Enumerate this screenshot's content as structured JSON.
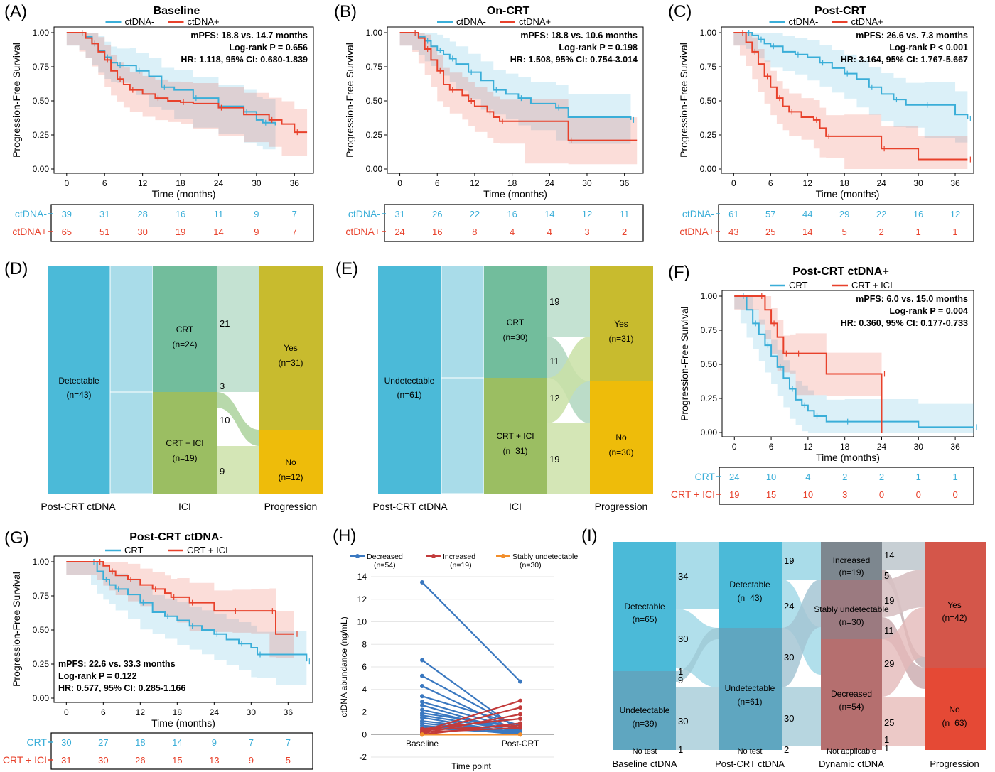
{
  "colors": {
    "neg": "#3aaed8",
    "pos": "#e8412b",
    "blue_line": "#3a78c0",
    "red_line": "#c23b3b",
    "orange_line": "#f28e2b"
  },
  "chart_data": [
    {
      "id": "A",
      "type": "line",
      "letter": "(A)",
      "title": "Baseline",
      "legend": [
        "ctDNA-",
        "ctDNA+"
      ],
      "xlabel": "Time (months)",
      "ylabel": "Progression-Free Survival",
      "xlim": [
        -2,
        39
      ],
      "ylim": [
        0,
        1
      ],
      "xticks": [
        "0",
        "6",
        "12",
        "18",
        "24",
        "30",
        "36"
      ],
      "yticks": [
        "0.00",
        "0.25",
        "0.50",
        "0.75",
        "1.00"
      ],
      "annotation": [
        "mPFS: 18.8 vs. 14.7 months",
        "Log-rank P = 0.656",
        "HR: 1.118, 95% CI: 0.680-1.839"
      ],
      "series": [
        {
          "name": "ctDNA-",
          "x": [
            0,
            2,
            3,
            4,
            5,
            6,
            7,
            8,
            10,
            11,
            13,
            15,
            17,
            20,
            24,
            28,
            30,
            31,
            33
          ],
          "y": [
            1,
            1,
            0.97,
            0.92,
            0.87,
            0.82,
            0.78,
            0.76,
            0.76,
            0.72,
            0.68,
            0.6,
            0.58,
            0.52,
            0.46,
            0.42,
            0.36,
            0.34,
            0.32
          ]
        },
        {
          "name": "ctDNA+",
          "x": [
            0,
            2,
            3,
            4,
            5,
            6,
            7,
            8,
            9,
            10,
            12,
            14,
            16,
            18,
            20,
            24,
            28,
            32,
            34,
            36,
            38
          ],
          "y": [
            1,
            1,
            0.96,
            0.92,
            0.86,
            0.8,
            0.72,
            0.66,
            0.62,
            0.58,
            0.55,
            0.52,
            0.5,
            0.49,
            0.48,
            0.45,
            0.4,
            0.36,
            0.33,
            0.27,
            0.27
          ]
        }
      ],
      "risk_table": {
        "labels": [
          "ctDNA-",
          "ctDNA+"
        ],
        "rows": [
          [
            "39",
            "31",
            "28",
            "16",
            "11",
            "9",
            "7"
          ],
          [
            "65",
            "51",
            "30",
            "19",
            "14",
            "9",
            "7"
          ]
        ]
      }
    },
    {
      "id": "B",
      "type": "line",
      "letter": "(B)",
      "title": "On-CRT",
      "legend": [
        "ctDNA-",
        "ctDNA+"
      ],
      "xlabel": "Time (months)",
      "ylabel": "Progression-Free Survival",
      "xlim": [
        -2,
        39
      ],
      "ylim": [
        0,
        1
      ],
      "xticks": [
        "0",
        "6",
        "12",
        "18",
        "24",
        "30",
        "36"
      ],
      "yticks": [
        "0.00",
        "0.25",
        "0.50",
        "0.75",
        "1.00"
      ],
      "annotation": [
        "mPFS: 18.8 vs. 10.6 months",
        "Log-rank P = 0.198",
        "HR: 1.508, 95% CI: 0.754-3.014"
      ],
      "series": [
        {
          "name": "ctDNA-",
          "x": [
            0,
            2,
            3,
            4,
            5,
            6,
            7,
            8,
            9,
            11,
            13,
            15,
            17,
            19,
            21,
            25,
            27,
            37
          ],
          "y": [
            1,
            1,
            0.97,
            0.94,
            0.9,
            0.87,
            0.84,
            0.81,
            0.77,
            0.71,
            0.65,
            0.58,
            0.55,
            0.52,
            0.48,
            0.45,
            0.38,
            0.36
          ]
        },
        {
          "name": "ctDNA+",
          "x": [
            0,
            2,
            3,
            4,
            5,
            6,
            7,
            8,
            10,
            11,
            12,
            14,
            15,
            16,
            20,
            27,
            38
          ],
          "y": [
            1,
            1,
            0.96,
            0.88,
            0.8,
            0.72,
            0.62,
            0.58,
            0.54,
            0.5,
            0.46,
            0.42,
            0.38,
            0.35,
            0.35,
            0.21,
            0.21
          ]
        }
      ],
      "risk_table": {
        "labels": [
          "ctDNA-",
          "ctDNA+"
        ],
        "rows": [
          [
            "31",
            "26",
            "22",
            "16",
            "14",
            "12",
            "11"
          ],
          [
            "24",
            "16",
            "8",
            "4",
            "4",
            "3",
            "2"
          ]
        ]
      }
    },
    {
      "id": "C",
      "type": "line",
      "letter": "(C)",
      "title": "Post-CRT",
      "legend": [
        "ctDNA-",
        "ctDNA+"
      ],
      "xlabel": "Time (months)",
      "ylabel": "Progression-Free Survival",
      "xlim": [
        -2,
        39
      ],
      "ylim": [
        0,
        1
      ],
      "xticks": [
        "0",
        "6",
        "12",
        "18",
        "24",
        "30",
        "36"
      ],
      "yticks": [
        "0.00",
        "0.25",
        "0.50",
        "0.75",
        "1.00"
      ],
      "annotation": [
        "mPFS: 26.6 vs. 7.3 months",
        "Log-rank P < 0.001",
        "HR: 3.164, 95% CI: 1.767-5.667"
      ],
      "series": [
        {
          "name": "ctDNA-",
          "x": [
            0,
            2,
            3,
            4,
            5,
            6,
            8,
            10,
            12,
            14,
            16,
            18,
            20,
            22,
            24,
            26,
            28,
            31,
            36,
            38
          ],
          "y": [
            1,
            1,
            0.98,
            0.95,
            0.92,
            0.9,
            0.86,
            0.84,
            0.82,
            0.78,
            0.74,
            0.7,
            0.66,
            0.6,
            0.55,
            0.51,
            0.47,
            0.47,
            0.4,
            0.37
          ]
        },
        {
          "name": "ctDNA+",
          "x": [
            0,
            1,
            2,
            3,
            4,
            5,
            6,
            7,
            8,
            9,
            11,
            13,
            14,
            15,
            18,
            24,
            30,
            38
          ],
          "y": [
            1,
            1,
            0.93,
            0.86,
            0.77,
            0.68,
            0.6,
            0.52,
            0.46,
            0.42,
            0.38,
            0.36,
            0.3,
            0.24,
            0.24,
            0.15,
            0.07,
            0.07
          ]
        }
      ],
      "risk_table": {
        "labels": [
          "ctDNA-",
          "ctDNA+"
        ],
        "rows": [
          [
            "61",
            "57",
            "44",
            "29",
            "22",
            "16",
            "12"
          ],
          [
            "43",
            "25",
            "14",
            "5",
            "2",
            "1",
            "1"
          ]
        ]
      }
    },
    {
      "id": "F",
      "type": "line",
      "letter": "(F)",
      "title": "Post-CRT ctDNA+",
      "legend": [
        "CRT",
        "CRT + ICI"
      ],
      "xlabel": "Time (months)",
      "ylabel": "Progression-Free Survival",
      "xlim": [
        -2,
        39
      ],
      "ylim": [
        0,
        1
      ],
      "xticks": [
        "0",
        "6",
        "12",
        "18",
        "24",
        "30",
        "36"
      ],
      "yticks": [
        "0.00",
        "0.25",
        "0.50",
        "0.75",
        "1.00"
      ],
      "annotation": [
        "mPFS: 6.0 vs. 15.0 months",
        "Log-rank P = 0.004",
        "HR: 0.360, 95% CI: 0.177-0.733"
      ],
      "series": [
        {
          "name": "CRT",
          "x": [
            0,
            1,
            2,
            3,
            4,
            5,
            6,
            7,
            8,
            9,
            10,
            11,
            12,
            13,
            15,
            18,
            30,
            39
          ],
          "y": [
            1,
            1,
            0.9,
            0.8,
            0.72,
            0.64,
            0.56,
            0.48,
            0.4,
            0.32,
            0.24,
            0.2,
            0.16,
            0.12,
            0.08,
            0.08,
            0.04,
            0.04
          ]
        },
        {
          "name": "CRT + ICI",
          "x": [
            0,
            4,
            5,
            6,
            7,
            8,
            9,
            10,
            15,
            24,
            24
          ],
          "y": [
            1,
            1,
            0.9,
            0.8,
            0.7,
            0.58,
            0.58,
            0.58,
            0.43,
            0.43,
            0
          ]
        }
      ],
      "risk_table": {
        "labels": [
          "CRT",
          "CRT + ICI"
        ],
        "rows": [
          [
            "24",
            "10",
            "4",
            "2",
            "2",
            "1",
            "1"
          ],
          [
            "19",
            "15",
            "10",
            "3",
            "0",
            "0",
            "0"
          ]
        ]
      }
    },
    {
      "id": "G",
      "type": "line",
      "letter": "(G)",
      "title": "Post-CRT ctDNA-",
      "legend": [
        "CRT",
        "CRT + ICI"
      ],
      "xlabel": "Time (months)",
      "ylabel": "Progression-Free Survival",
      "xlim": [
        -2,
        40
      ],
      "ylim": [
        0,
        1
      ],
      "xticks": [
        "0",
        "6",
        "12",
        "18",
        "24",
        "30",
        "36"
      ],
      "yticks": [
        "0.00",
        "0.25",
        "0.50",
        "0.75",
        "1.00"
      ],
      "annotation": [
        "mPFS: 22.6 vs. 33.3 months",
        "Log-rank P = 0.122",
        "HR: 0.577, 95% CI: 0.285-1.166"
      ],
      "series": [
        {
          "name": "CRT",
          "x": [
            0,
            4,
            5,
            6,
            7,
            8,
            10,
            12,
            14,
            16,
            18,
            20,
            22,
            24,
            26,
            28,
            30,
            31,
            34,
            39
          ],
          "y": [
            1,
            1,
            0.93,
            0.87,
            0.83,
            0.8,
            0.76,
            0.7,
            0.63,
            0.6,
            0.57,
            0.53,
            0.5,
            0.47,
            0.43,
            0.4,
            0.37,
            0.32,
            0.32,
            0.27
          ]
        },
        {
          "name": "CRT + ICI",
          "x": [
            0,
            5,
            6,
            7,
            8,
            10,
            12,
            14,
            16,
            17,
            18,
            20,
            24,
            27,
            30,
            33,
            34,
            37
          ],
          "y": [
            1,
            1,
            0.97,
            0.93,
            0.9,
            0.87,
            0.83,
            0.8,
            0.77,
            0.74,
            0.74,
            0.7,
            0.64,
            0.64,
            0.64,
            0.64,
            0.47,
            0.47
          ]
        }
      ],
      "risk_table": {
        "labels": [
          "CRT",
          "CRT + ICI"
        ],
        "rows": [
          [
            "30",
            "27",
            "18",
            "14",
            "9",
            "7",
            "7"
          ],
          [
            "31",
            "30",
            "26",
            "15",
            "13",
            "9",
            "5"
          ]
        ]
      }
    },
    {
      "id": "H",
      "type": "line",
      "letter": "(H)",
      "xlabel": "Time point",
      "ylabel": "ctDNA abundance (ng/mL)",
      "categories": [
        "Baseline",
        "Post-CRT"
      ],
      "ylim": [
        -2,
        14
      ],
      "yticks": [
        "-2",
        "0",
        "2",
        "4",
        "6",
        "8",
        "10",
        "12",
        "14"
      ],
      "legend": [
        {
          "label": "Decreased",
          "n": "(n=54)"
        },
        {
          "label": "Increased",
          "n": "(n=19)"
        },
        {
          "label": "Stably undetectable",
          "n": "(n=30)"
        }
      ],
      "series": [
        {
          "name": "Decreased",
          "pairs": [
            [
              13.5,
              4.7
            ],
            [
              6.6,
              0.3
            ],
            [
              5.2,
              0.5
            ],
            [
              4.3,
              0.2
            ],
            [
              3.4,
              0.8
            ],
            [
              2.9,
              0.4
            ],
            [
              2.6,
              0.1
            ],
            [
              2.2,
              0.2
            ],
            [
              1.9,
              0.6
            ],
            [
              1.7,
              0.3
            ],
            [
              1.5,
              0.1
            ],
            [
              1.2,
              0.2
            ],
            [
              1.0,
              0.1
            ],
            [
              0.8,
              0.0
            ],
            [
              0.6,
              0.1
            ]
          ]
        },
        {
          "name": "Increased",
          "pairs": [
            [
              0.3,
              3.0
            ],
            [
              0.2,
              2.4
            ],
            [
              0.1,
              1.8
            ],
            [
              0.5,
              1.4
            ],
            [
              0.0,
              1.0
            ],
            [
              0.4,
              0.8
            ],
            [
              0.2,
              0.6
            ]
          ]
        },
        {
          "name": "Stably undetectable",
          "pairs": [
            [
              0,
              0
            ],
            [
              0,
              0
            ],
            [
              0,
              0
            ]
          ]
        }
      ]
    }
  ],
  "alluvial_D": {
    "letter": "(D)",
    "axis_labels": [
      "Post-CRT ctDNA",
      "ICI",
      "Progression"
    ],
    "node1": {
      "label": "Detectable",
      "n": "(n=43)"
    },
    "node2": [
      {
        "label": "CRT",
        "n": "(n=24)"
      },
      {
        "label": "CRT + ICI",
        "n": "(n=19)"
      }
    ],
    "node3": [
      {
        "label": "Yes",
        "n": "(n=31)"
      },
      {
        "label": "No",
        "n": "(n=12)"
      }
    ],
    "flow_numbers": [
      "21",
      "3",
      "10",
      "9"
    ]
  },
  "alluvial_E": {
    "letter": "(E)",
    "axis_labels": [
      "Post-CRT ctDNA",
      "ICI",
      "Progression"
    ],
    "node1": {
      "label": "Undetectable",
      "n": "(n=61)"
    },
    "node2": [
      {
        "label": "CRT",
        "n": "(n=30)"
      },
      {
        "label": "CRT + ICI",
        "n": "(n=31)"
      }
    ],
    "node3": [
      {
        "label": "Yes",
        "n": "(n=31)"
      },
      {
        "label": "No",
        "n": "(n=30)"
      }
    ],
    "flow_numbers": [
      "19",
      "11",
      "12",
      "19"
    ]
  },
  "alluvial_I": {
    "letter": "(I)",
    "axis_labels": [
      "Baseline ctDNA",
      "Post-CRT ctDNA",
      "Dynamic ctDNA",
      "Progression"
    ],
    "col1": [
      {
        "label": "Detectable",
        "n": "(n=65)"
      },
      {
        "label": "Undetectable",
        "n": "(n=39)"
      },
      {
        "label": "No test",
        "n": ""
      }
    ],
    "col2": [
      {
        "label": "Detectable",
        "n": "(n=43)"
      },
      {
        "label": "Undetectable",
        "n": "(n=61)"
      },
      {
        "label": "No test",
        "n": ""
      }
    ],
    "col3": [
      {
        "label": "Increased",
        "n": "(n=19)"
      },
      {
        "label": "Stably undetectable",
        "n": "(n=30)"
      },
      {
        "label": "Decreased",
        "n": "(n=54)"
      },
      {
        "label": "Not applicable",
        "n": ""
      }
    ],
    "col4": [
      {
        "label": "Yes",
        "n": "(n=42)"
      },
      {
        "label": "No",
        "n": "(n=63)"
      }
    ],
    "flow1_numbers": [
      "34",
      "30",
      "1",
      "9",
      "30",
      "1"
    ],
    "flow2_numbers": [
      "19",
      "24",
      "30",
      "30",
      "2"
    ],
    "flow3_numbers": [
      "14",
      "5",
      "19",
      "11",
      "29",
      "25",
      "1",
      "1"
    ]
  }
}
